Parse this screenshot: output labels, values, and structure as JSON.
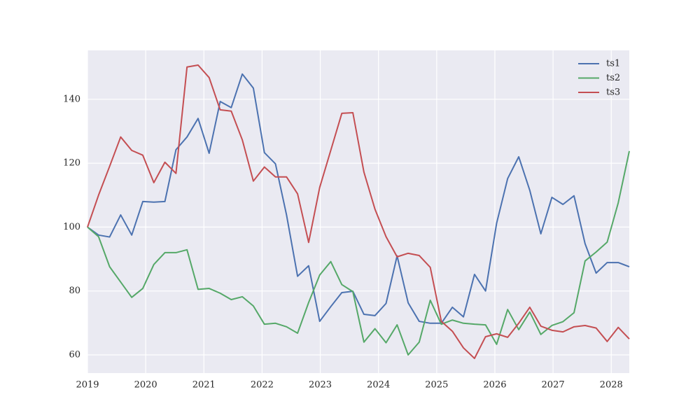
{
  "chart_data": {
    "type": "line",
    "x": [
      2019,
      2019.19,
      2019.38,
      2019.57,
      2019.76,
      2019.95,
      2020.14,
      2020.33,
      2020.52,
      2020.71,
      2020.9,
      2021.09,
      2021.28,
      2021.47,
      2021.66,
      2021.85,
      2022.04,
      2022.23,
      2022.42,
      2022.61,
      2022.8,
      2022.99,
      2023.18,
      2023.37,
      2023.56,
      2023.75,
      2023.94,
      2024.13,
      2024.32,
      2024.51,
      2024.7,
      2024.89,
      2025.08,
      2025.27,
      2025.46,
      2025.65,
      2025.84,
      2026.03,
      2026.22,
      2026.41,
      2026.6,
      2026.79,
      2026.98,
      2027.17,
      2027.36,
      2027.55,
      2027.74,
      2027.93,
      2028.12,
      2028.31
    ],
    "series": [
      {
        "name": "ts1",
        "color": "#4c72b0",
        "values": [
          100,
          97.5,
          96.9,
          103.8,
          97.5,
          108,
          107.8,
          108,
          124.2,
          128.2,
          134,
          123.1,
          139.3,
          137.4,
          147.9,
          143.5,
          123.3,
          119.8,
          103.8,
          84.6,
          87.9,
          70.5,
          75.1,
          79.5,
          79.9,
          72.7,
          72.3,
          76.1,
          91,
          76.3,
          70.5,
          69.9,
          69.9,
          74.9,
          71.9,
          85.2,
          80,
          101.2,
          115.2,
          122,
          111.5,
          97.9,
          109.3,
          107.1,
          109.8,
          94.8,
          85.6,
          88.9,
          88.9,
          87.6
        ]
      },
      {
        "name": "ts2",
        "color": "#55a868",
        "values": [
          100,
          97,
          87.6,
          82.8,
          78,
          80.8,
          88.3,
          92,
          92,
          92.9,
          80.5,
          80.8,
          79.3,
          77.3,
          78.2,
          75.3,
          69.6,
          69.9,
          68.8,
          66.8,
          76.4,
          85,
          89.2,
          82,
          79.8,
          64,
          68.2,
          63.8,
          69.4,
          60,
          64,
          77.1,
          69.6,
          70.9,
          69.9,
          69.6,
          69.4,
          63.3,
          74.2,
          67.9,
          73.4,
          66.4,
          69.2,
          70.4,
          73.2,
          89.4,
          92.2,
          95.3,
          107.6,
          123.8
        ]
      },
      {
        "name": "ts3",
        "color": "#c44e52",
        "values": [
          100,
          110,
          119,
          128.2,
          124,
          122.5,
          113.9,
          120.3,
          116.8,
          150.1,
          150.7,
          146.8,
          136.7,
          136.3,
          127.3,
          114.4,
          118.8,
          115.7,
          115.7,
          110.4,
          95.2,
          112.4,
          124,
          135.6,
          135.8,
          117.2,
          105.6,
          97,
          90.7,
          91.8,
          91.1,
          87.4,
          70.5,
          67.4,
          62.2,
          58.9,
          65.7,
          66.6,
          65.5,
          69.9,
          74.9,
          69,
          67.7,
          67.2,
          68.8,
          69.2,
          68.4,
          64.2,
          68.6,
          65
        ]
      }
    ],
    "xlim": [
      2019,
      2028.31
    ],
    "xticks": [
      2019,
      2020,
      2021,
      2022,
      2023,
      2024,
      2025,
      2026,
      2027,
      2028
    ],
    "ylim": [
      54.3,
      155.3
    ],
    "yticks": [
      60,
      80,
      100,
      120,
      140
    ],
    "grid": true,
    "legend": "upper right"
  }
}
